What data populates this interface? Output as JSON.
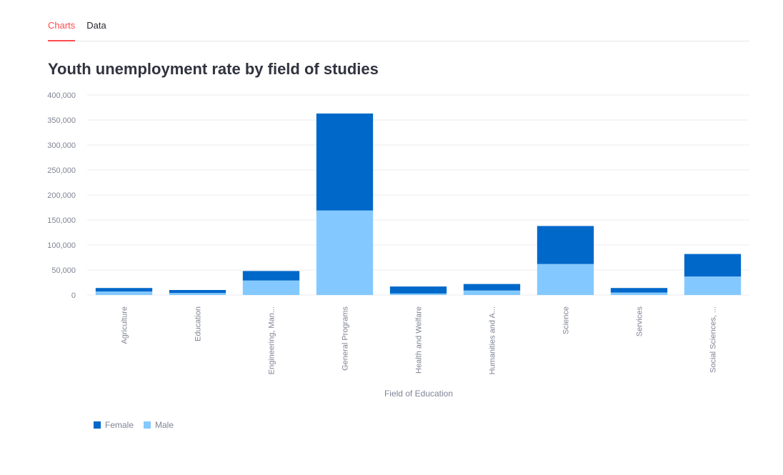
{
  "tabs": [
    {
      "label": "Charts",
      "active": true
    },
    {
      "label": "Data",
      "active": false
    }
  ],
  "chart_data": {
    "type": "bar",
    "stacked": true,
    "title": "Youth unemployment rate by field of studies",
    "xlabel": "Field of Education",
    "ylabel": "",
    "ylim": [
      0,
      400000
    ],
    "yticks": [
      0,
      50000,
      100000,
      150000,
      200000,
      250000,
      300000,
      350000,
      400000
    ],
    "ytick_labels": [
      "0",
      "50,000",
      "100,000",
      "150,000",
      "200,000",
      "250,000",
      "300,000",
      "350,000",
      "400,000"
    ],
    "categories": [
      "Agriculture",
      "Education",
      "Engineering, Man...",
      "General Programs",
      "Health and Welfare",
      "Humanities and A...",
      "Science",
      "Services",
      "Social Sciences, ..."
    ],
    "series": [
      {
        "name": "Male",
        "color": "#83c9ff",
        "values": [
          7000,
          4000,
          29000,
          169000,
          3000,
          9000,
          62000,
          5000,
          37000
        ]
      },
      {
        "name": "Female",
        "color": "#0068c9",
        "values": [
          7000,
          6000,
          19000,
          194000,
          14000,
          13000,
          76000,
          9000,
          45000
        ]
      }
    ],
    "legend": {
      "placement": "bottom-left",
      "order": [
        "Female",
        "Male"
      ]
    },
    "grid": true
  }
}
